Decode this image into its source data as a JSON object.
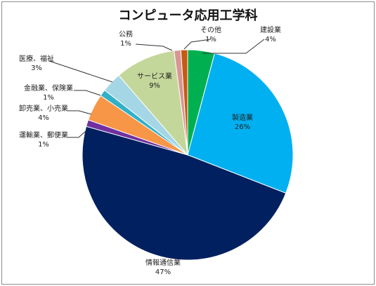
{
  "chart_data": {
    "type": "pie",
    "title": "コンピュータ応用工学科",
    "slices": [
      {
        "label": "建設業",
        "value": 4,
        "value_label": "4%",
        "color": "#00b050"
      },
      {
        "label": "製造業",
        "value": 26,
        "value_label": "26%",
        "color": "#00b0f0"
      },
      {
        "label": "情報通信業",
        "value": 47,
        "value_label": "47%",
        "color": "#002060"
      },
      {
        "label": "運輸業、郵便業",
        "value": 1,
        "value_label": "1%",
        "color": "#7030a0"
      },
      {
        "label": "卸売業、小売業",
        "value": 4,
        "value_label": "4%",
        "color": "#f79646"
      },
      {
        "label": "金融業、保険業",
        "value": 1,
        "value_label": "1%",
        "color": "#31b0c8"
      },
      {
        "label": "医療、福祉",
        "value": 3,
        "value_label": "3%",
        "color": "#a4d6e6"
      },
      {
        "label": "サービス業",
        "value": 9,
        "value_label": "9%",
        "color": "#c4d79b"
      },
      {
        "label": "公務",
        "value": 1,
        "value_label": "1%",
        "color": "#d99694"
      },
      {
        "label": "その他",
        "value": 1,
        "value_label": "1%",
        "color": "#c55a11"
      }
    ]
  }
}
